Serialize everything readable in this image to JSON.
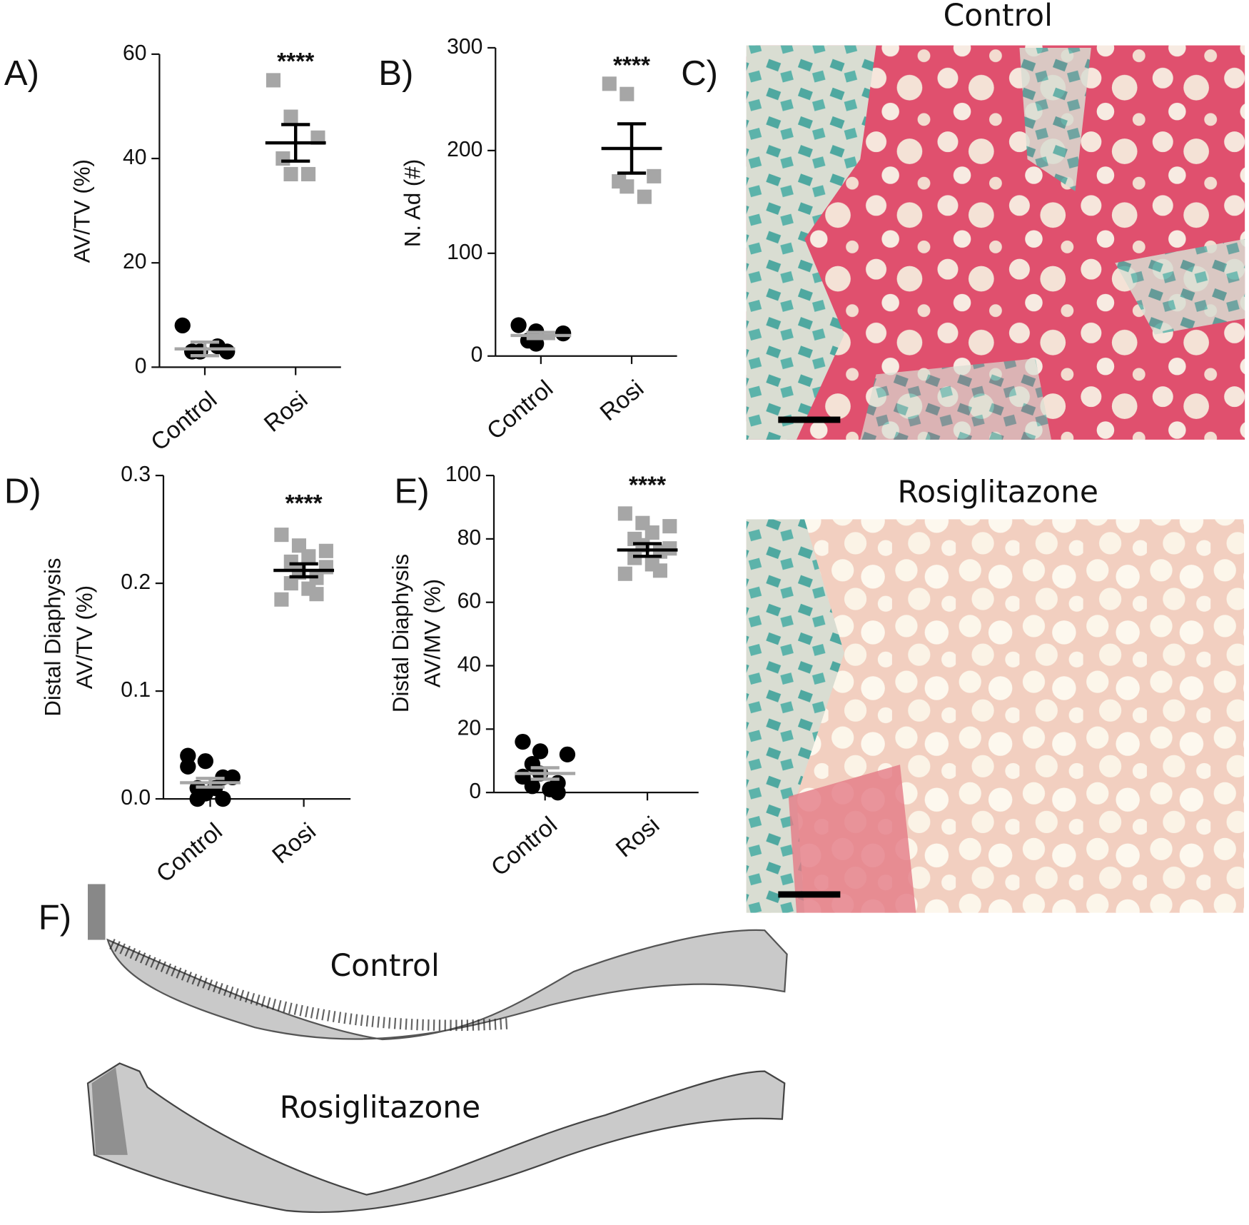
{
  "chart_data": [
    {
      "type": "dotplot",
      "label": "A)",
      "ylabel": [
        "AV/TV (%)"
      ],
      "categories": [
        "Control",
        "Rosi"
      ],
      "ylim": [
        0,
        60
      ],
      "yticks": [
        0,
        20,
        40,
        60
      ],
      "annotation": "****",
      "groups": [
        {
          "values": [
            8,
            3,
            3,
            3,
            3,
            4
          ],
          "mean": 3.5,
          "sem": 1.3,
          "color": "#000000",
          "marker": "circle",
          "bar_color": "#a6a6a6"
        },
        {
          "values": [
            55,
            48,
            44,
            40,
            37,
            37
          ],
          "mean": 43,
          "sem": 3.5,
          "color": "#a6a6a6",
          "marker": "square",
          "bar_color": "#000000"
        }
      ]
    },
    {
      "type": "dotplot",
      "label": "B)",
      "ylabel": [
        "N. Ad (#)"
      ],
      "categories": [
        "Control",
        "Rosi"
      ],
      "ylim": [
        0,
        300
      ],
      "yticks": [
        0,
        100,
        200,
        300
      ],
      "annotation": "****",
      "groups": [
        {
          "values": [
            30,
            24,
            22,
            15,
            12
          ],
          "mean": 20,
          "sem": 3,
          "color": "#000000",
          "marker": "circle",
          "bar_color": "#a6a6a6"
        },
        {
          "values": [
            265,
            255,
            175,
            170,
            165,
            155
          ],
          "mean": 202,
          "sem": 24,
          "color": "#a6a6a6",
          "marker": "square",
          "bar_color": "#000000"
        }
      ]
    },
    {
      "type": "dotplot",
      "label": "D)",
      "ylabel": [
        "Distal Diaphysis",
        "AV/TV (%)"
      ],
      "categories": [
        "Control",
        "Rosi"
      ],
      "ylim": [
        0,
        0.3
      ],
      "yticks": [
        {
          "value": 0,
          "label": "0.0"
        },
        0.1,
        0.2,
        0.3
      ],
      "annotation": "****",
      "groups": [
        {
          "values": [
            0.04,
            0.035,
            0.02,
            0.01,
            0.005,
            0,
            0,
            0.01,
            0.02,
            0.03
          ],
          "mean": 0.015,
          "sem": 0.004,
          "color": "#000000",
          "marker": "circle",
          "bar_color": "#a6a6a6"
        },
        {
          "values": [
            0.245,
            0.235,
            0.23,
            0.22,
            0.21,
            0.205,
            0.2,
            0.195,
            0.19,
            0.185,
            0.225,
            0.215
          ],
          "mean": 0.212,
          "sem": 0.006,
          "color": "#a6a6a6",
          "marker": "square",
          "bar_color": "#000000"
        }
      ]
    },
    {
      "type": "dotplot",
      "label": "E)",
      "ylabel": [
        "Distal Diaphysis",
        "AV/MV (%)"
      ],
      "categories": [
        "Control",
        "Rosi"
      ],
      "ylim": [
        0,
        100
      ],
      "yticks": [
        0,
        20,
        40,
        60,
        80,
        100
      ],
      "annotation": "****",
      "groups": [
        {
          "values": [
            16,
            13,
            12,
            9,
            6,
            3,
            2,
            1,
            0,
            5
          ],
          "mean": 6,
          "sem": 1.8,
          "color": "#000000",
          "marker": "circle",
          "bar_color": "#a6a6a6"
        },
        {
          "values": [
            88,
            85,
            84,
            80,
            78,
            76,
            74,
            72,
            70,
            69,
            82,
            77
          ],
          "mean": 76.5,
          "sem": 2,
          "color": "#a6a6a6",
          "marker": "square",
          "bar_color": "#000000"
        }
      ]
    }
  ],
  "panels": {
    "C": {
      "label": "C)",
      "titles": [
        "Control",
        "Rosiglitazone"
      ]
    },
    "F": {
      "label": "F)",
      "titles": [
        "Control",
        "Rosiglitazone"
      ]
    }
  }
}
